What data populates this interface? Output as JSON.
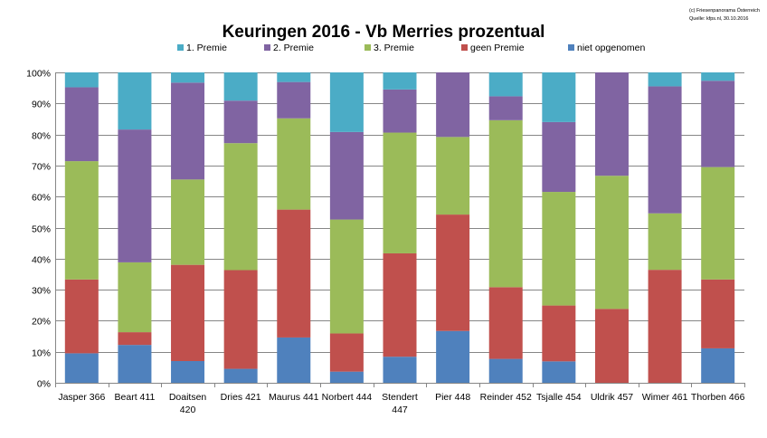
{
  "chart_data": {
    "type": "bar",
    "stacked": true,
    "title": "Keuringen 2016 - Vb Merries prozentual",
    "credit": {
      "line1": "(c) Friesenpanorama Österreich",
      "line2": "Quelle: kfps.nl, 30.10.2016"
    },
    "xlabel": "",
    "ylabel": "",
    "ylim": [
      0,
      100
    ],
    "yticks": [
      0,
      10,
      20,
      30,
      40,
      50,
      60,
      70,
      80,
      90,
      100
    ],
    "ytick_labels": [
      "0%",
      "10%",
      "20%",
      "30%",
      "40%",
      "50%",
      "60%",
      "70%",
      "80%",
      "90%",
      "100%"
    ],
    "grid": true,
    "legend_position": "top",
    "categories": [
      [
        "Jasper 366"
      ],
      [
        "Beart 411"
      ],
      [
        "Doaitsen",
        "420"
      ],
      [
        "Dries 421"
      ],
      [
        "Maurus 441"
      ],
      [
        "Norbert 444"
      ],
      [
        "Stendert",
        "447"
      ],
      [
        "Pier 448"
      ],
      [
        "Reinder 452"
      ],
      [
        "Tsjalle 454"
      ],
      [
        "Uldrik 457"
      ],
      [
        "Wimer 461"
      ],
      [
        "Thorben 466"
      ]
    ],
    "series": [
      {
        "name": "niet opgenomen",
        "color": "#4f81bd",
        "values": [
          9.5,
          12.2,
          7.0,
          4.5,
          14.6,
          3.6,
          8.4,
          16.7,
          7.7,
          6.9,
          0,
          0,
          11.1
        ]
      },
      {
        "name": "geen Premie",
        "color": "#c0504d",
        "values": [
          23.8,
          4.1,
          31.0,
          31.8,
          41.2,
          12.3,
          33.3,
          37.5,
          23.1,
          18.0,
          23.8,
          36.4,
          22.2
        ]
      },
      {
        "name": "3. Premie",
        "color": "#9bbb59",
        "values": [
          38.1,
          22.5,
          27.5,
          40.9,
          29.4,
          36.7,
          38.9,
          25.0,
          53.8,
          36.6,
          42.9,
          18.2,
          36.2
        ]
      },
      {
        "name": "2. Premie",
        "color": "#8064a2",
        "values": [
          23.8,
          42.8,
          31.2,
          13.7,
          11.7,
          28.2,
          13.9,
          20.8,
          7.7,
          22.5,
          33.3,
          40.9,
          27.8
        ]
      },
      {
        "name": "1. Premie",
        "color": "#4bacc6",
        "values": [
          4.8,
          18.4,
          3.3,
          9.1,
          3.1,
          19.2,
          5.5,
          0,
          7.7,
          16.0,
          0,
          4.5,
          2.7
        ]
      }
    ],
    "legend_order": [
      "1. Premie",
      "2. Premie",
      "3. Premie",
      "geen Premie",
      "niet opgenomen"
    ],
    "colors": {
      "grid": "#868686",
      "axis": "#868686",
      "text": "#000000"
    }
  }
}
